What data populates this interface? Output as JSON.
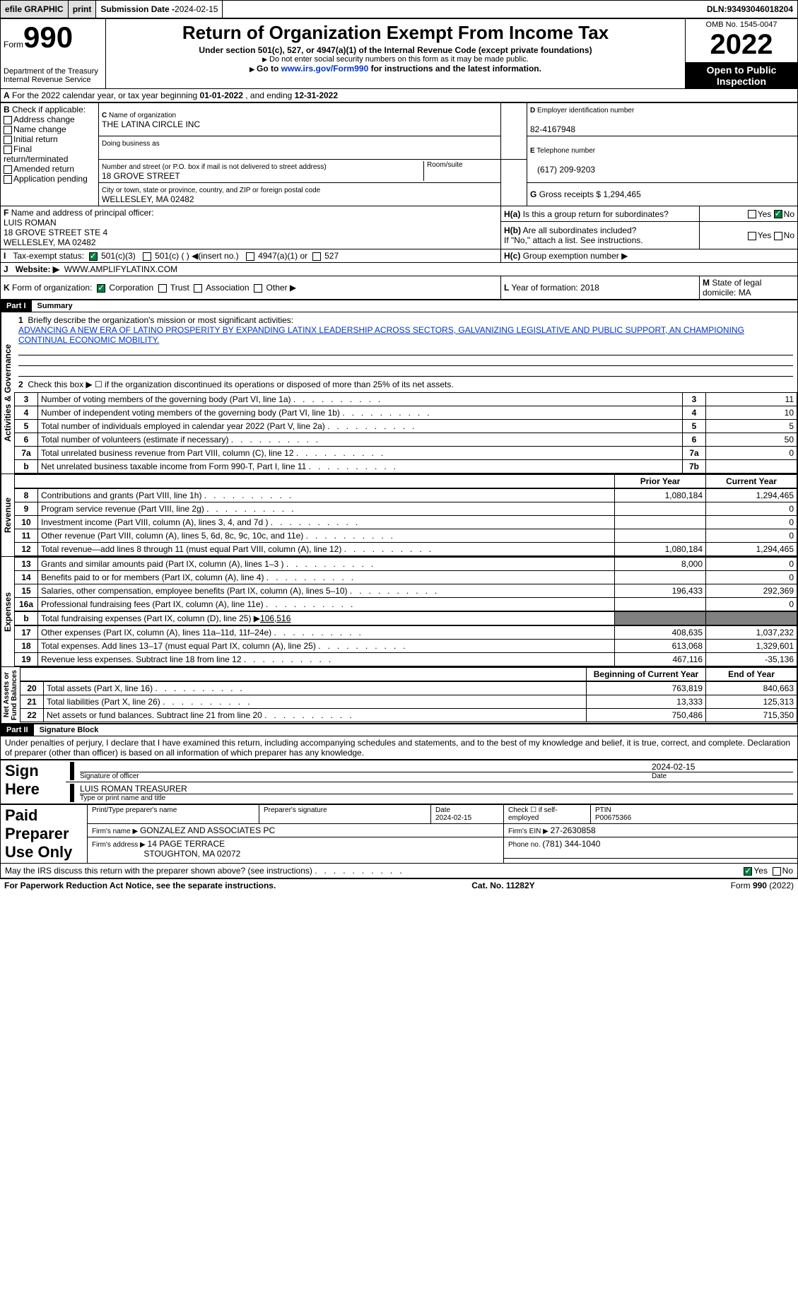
{
  "topbar": {
    "efile": "efile GRAPHIC",
    "print": "print",
    "subdate_label": "Submission Date - ",
    "subdate": "2024-02-15",
    "dln_label": "DLN: ",
    "dln": "93493046018204"
  },
  "header": {
    "form_label": "Form",
    "form_num": "990",
    "dept": "Department of the Treasury\nInternal Revenue Service",
    "title": "Return of Organization Exempt From Income Tax",
    "sub1": "Under section 501(c), 527, or 4947(a)(1) of the Internal Revenue Code (except private foundations)",
    "sub2": "Do not enter social security numbers on this form as it may be made public.",
    "sub3_pre": "Go to ",
    "sub3_link": "www.irs.gov/Form990",
    "sub3_post": " for instructions and the latest information.",
    "omb": "OMB No. 1545-0047",
    "year": "2022",
    "open": "Open to Public Inspection"
  },
  "a_line": {
    "pre": "For the 2022 calendar year, or tax year beginning ",
    "begin": "01-01-2022",
    "mid": "   , and ending ",
    "end": "12-31-2022"
  },
  "b": {
    "label": "Check if applicable:",
    "opts": [
      "Address change",
      "Name change",
      "Initial return",
      "Final return/terminated",
      "Amended return",
      "Application pending"
    ]
  },
  "c": {
    "name_label": "Name of organization",
    "name": "THE LATINA CIRCLE INC",
    "dba": "Doing business as",
    "addr_label": "Number and street (or P.O. box if mail is not delivered to street address)",
    "room_label": "Room/suite",
    "addr": "18 GROVE STREET",
    "city_label": "City or town, state or province, country, and ZIP or foreign postal code",
    "city": "WELLESLEY, MA  02482"
  },
  "d": {
    "label": "Employer identification number",
    "val": "82-4167948"
  },
  "e": {
    "label": "Telephone number",
    "val": "(617) 209-9203"
  },
  "g": {
    "label": "Gross receipts $ ",
    "val": "1,294,465"
  },
  "f": {
    "label": "Name and address of principal officer:",
    "name": "LUIS ROMAN",
    "addr1": "18 GROVE STREET STE 4",
    "addr2": "WELLESLEY, MA  02482"
  },
  "h": {
    "a": "Is this a group return for subordinates?",
    "b": "Are all subordinates included?",
    "b_note": "If \"No,\" attach a list. See instructions.",
    "c": "Group exemption number ▶",
    "yes": "Yes",
    "no": "No"
  },
  "i": {
    "label": "Tax-exempt status:",
    "o501c3": "501(c)(3)",
    "o501c": "501(c) (  ) ◀(insert no.)",
    "o4947": "4947(a)(1) or",
    "o527": "527"
  },
  "j": {
    "label": "Website: ▶",
    "val": "WWW.AMPLIFYLATINX.COM"
  },
  "k": {
    "label": "Form of organization:",
    "corp": "Corporation",
    "trust": "Trust",
    "assoc": "Association",
    "other": "Other ▶"
  },
  "l": {
    "label": "Year of formation: ",
    "val": "2018"
  },
  "m": {
    "label": "State of legal domicile: ",
    "val": "MA"
  },
  "part1": {
    "hdr": "Part I",
    "title": "Summary"
  },
  "summary": {
    "line1_label": "Briefly describe the organization's mission or most significant activities:",
    "mission": "ADVANCING A NEW ERA OF LATINO PROSPERITY BY EXPANDING LATINX LEADERSHIP ACROSS SECTORS, GALVANIZING LEGISLATIVE AND PUBLIC SUPPORT, AN CHAMPIONING CONTINUAL ECONOMIC MOBILITY.",
    "line2": "Check this box ▶ ☐  if the organization discontinued its operations or disposed of more than 25% of its net assets.",
    "rows_ag": [
      {
        "n": "3",
        "t": "Number of voting members of the governing body (Part VI, line 1a)",
        "box": "3",
        "v": "11"
      },
      {
        "n": "4",
        "t": "Number of independent voting members of the governing body (Part VI, line 1b)",
        "box": "4",
        "v": "10"
      },
      {
        "n": "5",
        "t": "Total number of individuals employed in calendar year 2022 (Part V, line 2a)",
        "box": "5",
        "v": "5"
      },
      {
        "n": "6",
        "t": "Total number of volunteers (estimate if necessary)",
        "box": "6",
        "v": "50"
      },
      {
        "n": "7a",
        "t": "Total unrelated business revenue from Part VIII, column (C), line 12",
        "box": "7a",
        "v": "0"
      },
      {
        "n": "b",
        "t": "Net unrelated business taxable income from Form 990-T, Part I, line 11",
        "box": "7b",
        "v": ""
      }
    ],
    "col_prior": "Prior Year",
    "col_current": "Current Year",
    "rows_rev": [
      {
        "n": "8",
        "t": "Contributions and grants (Part VIII, line 1h)",
        "p": "1,080,184",
        "c": "1,294,465"
      },
      {
        "n": "9",
        "t": "Program service revenue (Part VIII, line 2g)",
        "p": "",
        "c": "0"
      },
      {
        "n": "10",
        "t": "Investment income (Part VIII, column (A), lines 3, 4, and 7d )",
        "p": "",
        "c": "0"
      },
      {
        "n": "11",
        "t": "Other revenue (Part VIII, column (A), lines 5, 6d, 8c, 9c, 10c, and 11e)",
        "p": "",
        "c": "0"
      },
      {
        "n": "12",
        "t": "Total revenue—add lines 8 through 11 (must equal Part VIII, column (A), line 12)",
        "p": "1,080,184",
        "c": "1,294,465"
      }
    ],
    "rows_exp": [
      {
        "n": "13",
        "t": "Grants and similar amounts paid (Part IX, column (A), lines 1–3 )",
        "p": "8,000",
        "c": "0"
      },
      {
        "n": "14",
        "t": "Benefits paid to or for members (Part IX, column (A), line 4)",
        "p": "",
        "c": "0"
      },
      {
        "n": "15",
        "t": "Salaries, other compensation, employee benefits (Part IX, column (A), lines 5–10)",
        "p": "196,433",
        "c": "292,369"
      },
      {
        "n": "16a",
        "t": "Professional fundraising fees (Part IX, column (A), line 11e)",
        "p": "",
        "c": "0"
      }
    ],
    "line16b_pre": "Total fundraising expenses (Part IX, column (D), line 25) ▶",
    "line16b_val": "106,516",
    "rows_exp2": [
      {
        "n": "17",
        "t": "Other expenses (Part IX, column (A), lines 11a–11d, 11f–24e)",
        "p": "408,635",
        "c": "1,037,232"
      },
      {
        "n": "18",
        "t": "Total expenses. Add lines 13–17 (must equal Part IX, column (A), line 25)",
        "p": "613,068",
        "c": "1,329,601"
      },
      {
        "n": "19",
        "t": "Revenue less expenses. Subtract line 18 from line 12",
        "p": "467,116",
        "c": "-35,136"
      }
    ],
    "col_begin": "Beginning of Current Year",
    "col_end": "End of Year",
    "rows_na": [
      {
        "n": "20",
        "t": "Total assets (Part X, line 16)",
        "p": "763,819",
        "c": "840,663"
      },
      {
        "n": "21",
        "t": "Total liabilities (Part X, line 26)",
        "p": "13,333",
        "c": "125,313"
      },
      {
        "n": "22",
        "t": "Net assets or fund balances. Subtract line 21 from line 20",
        "p": "750,486",
        "c": "715,350"
      }
    ],
    "tabs": {
      "ag": "Activities & Governance",
      "rev": "Revenue",
      "exp": "Expenses",
      "na": "Net Assets or\nFund Balances"
    }
  },
  "part2": {
    "hdr": "Part II",
    "title": "Signature Block"
  },
  "sig": {
    "decl": "Under penalties of perjury, I declare that I have examined this return, including accompanying schedules and statements, and to the best of my knowledge and belief, it is true, correct, and complete. Declaration of preparer (other than officer) is based on all information of which preparer has any knowledge.",
    "sign_here": "Sign Here",
    "sig_off": "Signature of officer",
    "date": "Date",
    "date_val": "2024-02-15",
    "name_title": "LUIS ROMAN  TREASURER",
    "type_name": "Type or print name and title",
    "paid": "Paid Preparer Use Only",
    "prep_name_label": "Print/Type preparer's name",
    "prep_sig_label": "Preparer's signature",
    "prep_date": "2024-02-15",
    "check_self": "Check ☐ if self-employed",
    "ptin_label": "PTIN",
    "ptin": "P00675366",
    "firm_name_label": "Firm's name    ▶ ",
    "firm_name": "GONZALEZ AND ASSOCIATES PC",
    "firm_ein_label": "Firm's EIN ▶ ",
    "firm_ein": "27-2630858",
    "firm_addr_label": "Firm's address ▶ ",
    "firm_addr1": "14 PAGE TERRACE",
    "firm_addr2": "STOUGHTON, MA  02072",
    "phone_label": "Phone no. ",
    "phone": "(781) 344-1040",
    "discuss": "May the IRS discuss this return with the preparer shown above? (see instructions)",
    "yes": "Yes",
    "no": "No"
  },
  "footer": {
    "left": "For Paperwork Reduction Act Notice, see the separate instructions.",
    "mid": "Cat. No. 11282Y",
    "right": "Form 990 (2022)"
  }
}
